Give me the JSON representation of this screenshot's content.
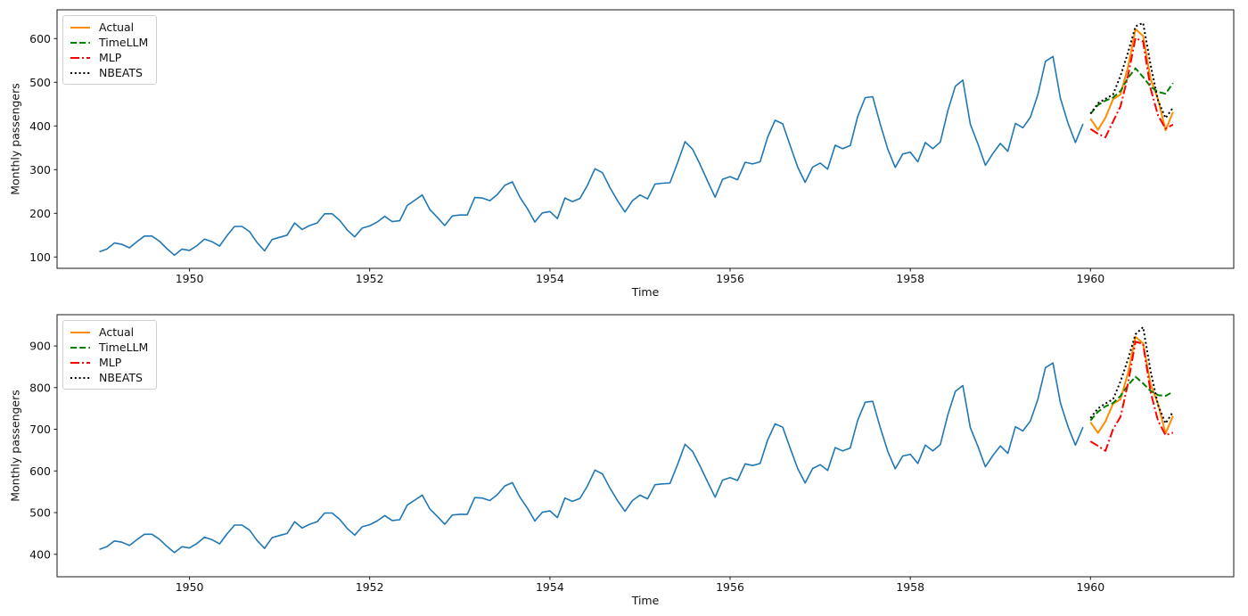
{
  "figure": {
    "background": "#ffffff",
    "frame_color": "#1a1a1a"
  },
  "chart_data": [
    {
      "type": "line",
      "title": "",
      "xlabel": "Time",
      "ylabel": "Monthly passengers",
      "xlim": [
        1948.53,
        1961.59
      ],
      "ylim": [
        74,
        666
      ],
      "xticks": [
        1950,
        1952,
        1954,
        1956,
        1958,
        1960
      ],
      "yticks": [
        100,
        200,
        300,
        400,
        500,
        600
      ],
      "grid": false,
      "legend_position": "upper-left",
      "legend": [
        "Actual",
        "TimeLLM",
        "MLP",
        "NBEATS"
      ],
      "series": [
        {
          "name": "History",
          "in_legend": false,
          "color": "#1f77b4",
          "style": "solid",
          "x_start": 1949.0,
          "x_step": 0.0833333,
          "values": [
            112,
            118,
            132,
            129,
            121,
            135,
            148,
            148,
            136,
            119,
            104,
            118,
            115,
            126,
            141,
            135,
            125,
            149,
            170,
            170,
            158,
            133,
            114,
            140,
            145,
            150,
            178,
            163,
            172,
            178,
            199,
            199,
            184,
            162,
            146,
            166,
            171,
            180,
            193,
            181,
            183,
            218,
            230,
            242,
            209,
            191,
            172,
            194,
            196,
            196,
            236,
            235,
            229,
            243,
            264,
            272,
            237,
            211,
            180,
            201,
            204,
            188,
            235,
            227,
            234,
            264,
            302,
            293,
            259,
            229,
            203,
            229,
            242,
            233,
            267,
            269,
            270,
            315,
            364,
            347,
            312,
            274,
            237,
            278,
            284,
            277,
            317,
            313,
            318,
            374,
            413,
            405,
            355,
            306,
            271,
            306,
            315,
            301,
            356,
            348,
            355,
            422,
            465,
            467,
            404,
            347,
            305,
            336,
            340,
            318,
            362,
            348,
            363,
            435,
            491,
            505,
            404,
            359,
            310,
            337,
            360,
            342,
            406,
            396,
            420,
            472,
            548,
            559,
            463,
            407,
            362,
            405
          ]
        },
        {
          "name": "Actual",
          "in_legend": true,
          "color": "#ff8c00",
          "style": "solid",
          "x_start": 1960.0,
          "x_step": 0.0833333,
          "values": [
            417,
            391,
            419,
            461,
            472,
            535,
            622,
            606,
            508,
            461,
            390,
            432
          ]
        },
        {
          "name": "TimeLLM",
          "in_legend": true,
          "color": "#008000",
          "style": "dashed",
          "x_start": 1960.0,
          "x_step": 0.0833333,
          "values": [
            428,
            448,
            458,
            465,
            480,
            510,
            532,
            512,
            490,
            478,
            474,
            498
          ]
        },
        {
          "name": "MLP",
          "in_legend": true,
          "color": "#ff0000",
          "style": "dashdot",
          "x_start": 1960.0,
          "x_step": 0.0833333,
          "values": [
            393,
            382,
            374,
            410,
            445,
            515,
            601,
            594,
            486,
            424,
            394,
            403
          ]
        },
        {
          "name": "NBEATS",
          "in_legend": true,
          "color": "#000000",
          "style": "dotted",
          "x_start": 1960.0,
          "x_step": 0.0833333,
          "values": [
            428,
            452,
            462,
            472,
            515,
            568,
            628,
            636,
            540,
            458,
            418,
            442
          ]
        }
      ]
    },
    {
      "type": "line",
      "title": "",
      "xlabel": "Time",
      "ylabel": "Monthly passengers",
      "xlim": [
        1948.53,
        1961.59
      ],
      "ylim": [
        346,
        975
      ],
      "xticks": [
        1950,
        1952,
        1954,
        1956,
        1958,
        1960
      ],
      "yticks": [
        400,
        500,
        600,
        700,
        800,
        900
      ],
      "grid": false,
      "legend_position": "upper-left",
      "legend": [
        "Actual",
        "TimeLLM",
        "MLP",
        "NBEATS"
      ],
      "series": [
        {
          "name": "History",
          "in_legend": false,
          "color": "#1f77b4",
          "style": "solid",
          "x_start": 1949.0,
          "x_step": 0.0833333,
          "values": [
            412,
            418,
            432,
            429,
            421,
            435,
            448,
            448,
            436,
            419,
            404,
            418,
            415,
            426,
            441,
            435,
            425,
            449,
            470,
            470,
            458,
            433,
            414,
            440,
            445,
            450,
            478,
            463,
            472,
            478,
            499,
            499,
            484,
            462,
            446,
            466,
            471,
            480,
            493,
            481,
            483,
            518,
            530,
            542,
            509,
            491,
            472,
            494,
            496,
            496,
            536,
            535,
            529,
            543,
            564,
            572,
            537,
            511,
            480,
            501,
            504,
            488,
            535,
            527,
            534,
            564,
            602,
            593,
            559,
            529,
            503,
            529,
            542,
            533,
            567,
            569,
            570,
            615,
            664,
            647,
            612,
            574,
            537,
            578,
            584,
            577,
            617,
            613,
            618,
            674,
            713,
            705,
            655,
            606,
            571,
            606,
            615,
            601,
            656,
            648,
            655,
            722,
            765,
            767,
            704,
            647,
            605,
            636,
            640,
            618,
            662,
            648,
            663,
            735,
            791,
            805,
            704,
            659,
            610,
            637,
            660,
            642,
            706,
            696,
            720,
            772,
            848,
            859,
            763,
            707,
            662,
            705
          ]
        },
        {
          "name": "Actual",
          "in_legend": true,
          "color": "#ff8c00",
          "style": "solid",
          "x_start": 1960.0,
          "x_step": 0.0833333,
          "values": [
            717,
            691,
            719,
            761,
            772,
            835,
            922,
            906,
            808,
            761,
            690,
            732
          ]
        },
        {
          "name": "TimeLLM",
          "in_legend": true,
          "color": "#008000",
          "style": "dashed",
          "x_start": 1960.0,
          "x_step": 0.0833333,
          "values": [
            721,
            742,
            755,
            763,
            780,
            806,
            826,
            810,
            792,
            782,
            780,
            790
          ]
        },
        {
          "name": "MLP",
          "in_legend": true,
          "color": "#ff0000",
          "style": "dashdot",
          "x_start": 1960.0,
          "x_step": 0.0833333,
          "values": [
            671,
            660,
            648,
            700,
            730,
            810,
            910,
            905,
            790,
            720,
            686,
            692
          ]
        },
        {
          "name": "NBEATS",
          "in_legend": true,
          "color": "#000000",
          "style": "dotted",
          "x_start": 1960.0,
          "x_step": 0.0833333,
          "values": [
            727,
            750,
            762,
            772,
            815,
            868,
            928,
            945,
            840,
            758,
            714,
            742
          ]
        }
      ]
    }
  ]
}
